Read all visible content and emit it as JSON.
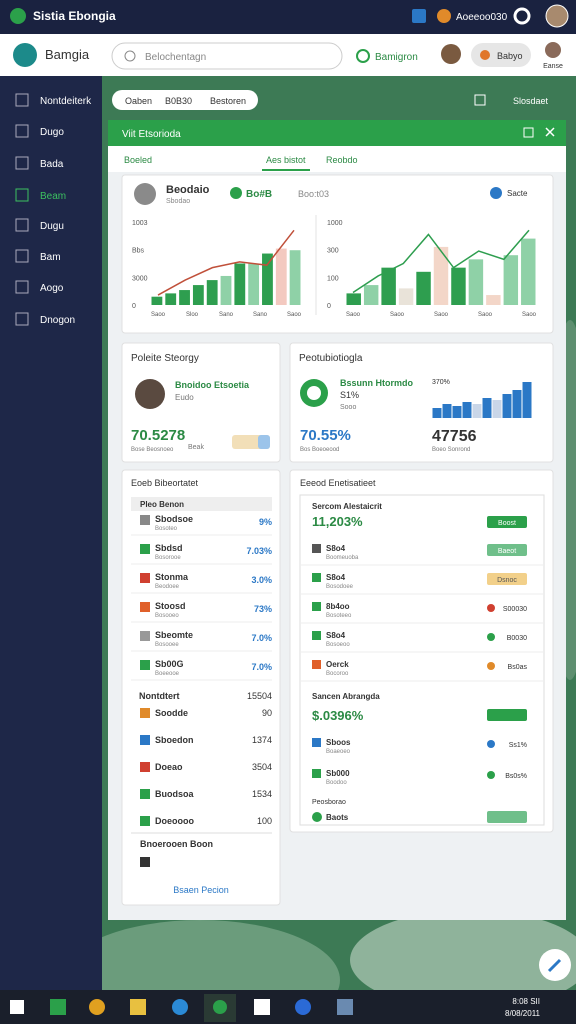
{
  "top_bar": {
    "app_name": "Sistia Ebongia",
    "user": "Aoeeoo030"
  },
  "header": {
    "brand": "Bamgia",
    "search": "Belochentagn",
    "status": "Bamigron",
    "pill": "Babyo",
    "avatar_label": "Eanse"
  },
  "sidebar": [
    "Nontdeiterk",
    "Dugo",
    "Bada",
    "Beam",
    "Dugu",
    "Bam",
    "Aogo",
    "Dnogon"
  ],
  "toolbar": {
    "filters": [
      "Oaben",
      "B0B30",
      "Bestoren"
    ],
    "action": "Slosdaet"
  },
  "panel": {
    "title": "Viit Etsorioda",
    "tabs": [
      "Boeled",
      "Aes bistot",
      "Reobdo"
    ],
    "overview": {
      "name": "Beodaio",
      "sub": "Sbodao",
      "badge": "Bo#B",
      "meta": "Boo:t03",
      "menu": "Sacte",
      "charts": [
        {
          "tick_labels": [
            "1003",
            "Bbs",
            "3000",
            "0"
          ],
          "x_labels": [
            "Saoo",
            "Sloo",
            "Sano",
            "Sano",
            "Saoo"
          ],
          "ylim": [
            0,
            100
          ],
          "values": [
            10,
            14,
            18,
            24,
            30,
            35,
            50,
            50,
            62,
            68,
            66
          ],
          "colors": [
            "#2e9e4f",
            "#2e9e4f",
            "#2e9e4f",
            "#2e9e4f",
            "#2e9e4f",
            "#8fd1a7",
            "#2e9e4f",
            "#8fd1a7",
            "#2e9e4f",
            "#f3c9c0",
            "#8fd1a7"
          ],
          "line": [
            12,
            30,
            45,
            52,
            48,
            90
          ],
          "line_color": "#c0503a"
        },
        {
          "tick_labels": [
            "1000",
            "300",
            "100",
            "0"
          ],
          "x_labels": [
            "Saoo",
            "Saoo",
            "Saoo",
            "Saoo",
            "Saoo"
          ],
          "ylim": [
            0,
            100
          ],
          "values": [
            14,
            24,
            45,
            20,
            40,
            70,
            45,
            55,
            12,
            60,
            80
          ],
          "colors": [
            "#2e9e4f",
            "#8fd1a7",
            "#2e9e4f",
            "#e9e3d9",
            "#2e9e4f",
            "#f3d6c8",
            "#2e9e4f",
            "#8fd1a7",
            "#f3d6c8",
            "#8fd1a7",
            "#8fd1a7"
          ],
          "line": [
            15,
            35,
            50,
            85,
            45,
            65,
            55,
            90
          ],
          "line_color": "#2e9e4f"
        }
      ]
    },
    "profile": {
      "title": "Poleite Steorgy",
      "name": "Bnoidoo Etsoetia",
      "sub": "Eudo",
      "big": "70.5278",
      "note": "Bose Beosnoeo",
      "tag": "Beak"
    },
    "stats": {
      "title": "Peotubiotiogla",
      "name": "Bssunn Htormdo",
      "pct": "S1%",
      "note": "Sooo",
      "small": "370%",
      "big1": "70.55%",
      "note1": "Bos Boeoeood",
      "big2": "47756",
      "note2": "Boeo Sonrond",
      "mini": {
        "ylim": [
          0,
          100
        ],
        "values": [
          25,
          35,
          30,
          40,
          35,
          50,
          45,
          60,
          70,
          90
        ],
        "colors": [
          "#2b78c6",
          "#2b78c6",
          "#2b78c6",
          "#2b78c6",
          "#c9d6e8",
          "#2b78c6",
          "#c9d6e8",
          "#2b78c6",
          "#2b78c6",
          "#2b78c6"
        ]
      }
    },
    "list_left": {
      "title": "Eoeb Bibeortatet",
      "header": "Pleo Benon",
      "rows": [
        {
          "name": "Sbodsoe",
          "sub": "Bosoteo",
          "value": "9%"
        },
        {
          "name": "Sbdsd",
          "sub": "Bosorooe",
          "value": "7.03%"
        },
        {
          "name": "Stonma",
          "sub": "Beodoee",
          "value": "3.0%"
        },
        {
          "name": "Stoosd",
          "sub": "Bosooeo",
          "value": "73%"
        },
        {
          "name": "Sbeomte",
          "sub": "Bosooee",
          "value": "7.0%"
        },
        {
          "name": "Sb00G",
          "sub": "Boeeooe",
          "value": "7.0%"
        }
      ],
      "section": "Nontdtert",
      "section_value": "15504",
      "rows2": [
        {
          "name": "Soodde",
          "value": "90"
        },
        {
          "name": "Sboedon",
          "value": "1374"
        },
        {
          "name": "Doeao",
          "value": "3504"
        },
        {
          "name": "Buodsoa",
          "value": "1534"
        },
        {
          "name": "Doeoooo",
          "value": "100"
        }
      ],
      "footer": "Bnoerooen Boon",
      "link": "Bsaen Pecion"
    },
    "list_right": {
      "title": "Eeeod Enetisatieet",
      "section": "Sercom Alestaicrit",
      "section_value": "11,203%",
      "rows": [
        {
          "name": "Sbo4",
          "sub": "Boorelonde",
          "status": "Boost"
        },
        {
          "name": "S8o4",
          "sub": "Boomeuoba",
          "status": "Baeot"
        },
        {
          "name": "S8o4",
          "sub": "Bosodoee",
          "status": "Dsnoc"
        },
        {
          "name": "8b4oo",
          "sub": "Bosoteeo",
          "status": "S00030"
        },
        {
          "name": "S8o4",
          "sub": "Bosoeoo",
          "status": "B0030"
        },
        {
          "name": "Oerck",
          "sub": "Bocoroo",
          "status": "Bs0as"
        }
      ],
      "section2": "Sancen Abrangda",
      "section2_value": "$.0396%",
      "rows2": [
        {
          "name": "Sboos",
          "sub": "Boaeoeo",
          "status": "Ss1%"
        },
        {
          "name": "Sb000",
          "sub": "Boodoo",
          "status": "Bs0s%"
        }
      ],
      "footer": "Peosborao",
      "footer_row": "Baots"
    }
  },
  "taskbar": {
    "time": "8:08 SII",
    "date": "8/08/2011"
  }
}
